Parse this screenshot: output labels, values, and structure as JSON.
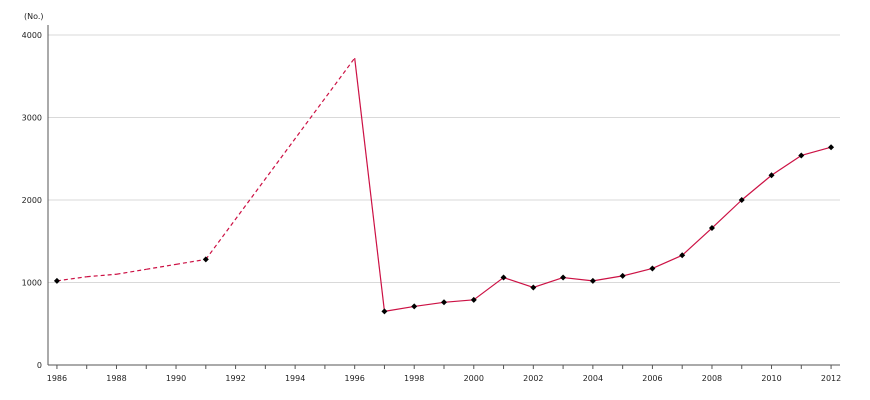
{
  "chart_data": {
    "type": "line",
    "unit_label": "(No.)",
    "title": "",
    "xlabel": "",
    "ylabel": "",
    "xlim": [
      1986,
      2012
    ],
    "ylim": [
      0,
      4000
    ],
    "x_ticks": [
      1986,
      1988,
      1990,
      1992,
      1994,
      1996,
      1998,
      2000,
      2002,
      2004,
      2006,
      2008,
      2010,
      2012
    ],
    "y_ticks": [
      0,
      1000,
      2000,
      3000,
      4000
    ],
    "grid": "horizontal",
    "legend": "none",
    "series": [
      {
        "color": "#cc1144",
        "points": [
          {
            "x": 1986,
            "y": 1020,
            "marker": true,
            "dashed_from_prev": false
          },
          {
            "x": 1987,
            "y": 1070,
            "marker": false,
            "dashed_from_prev": true
          },
          {
            "x": 1988,
            "y": 1100,
            "marker": false,
            "dashed_from_prev": true
          },
          {
            "x": 1989,
            "y": 1160,
            "marker": false,
            "dashed_from_prev": true
          },
          {
            "x": 1990,
            "y": 1220,
            "marker": false,
            "dashed_from_prev": true
          },
          {
            "x": 1991,
            "y": 1280,
            "marker": true,
            "dashed_from_prev": true
          },
          {
            "x": 1996,
            "y": 3720,
            "marker": false,
            "dashed_from_prev": true
          },
          {
            "x": 1997,
            "y": 650,
            "marker": true,
            "dashed_from_prev": false
          },
          {
            "x": 1998,
            "y": 710,
            "marker": true,
            "dashed_from_prev": false
          },
          {
            "x": 1999,
            "y": 760,
            "marker": true,
            "dashed_from_prev": false
          },
          {
            "x": 2000,
            "y": 790,
            "marker": true,
            "dashed_from_prev": false
          },
          {
            "x": 2001,
            "y": 1060,
            "marker": true,
            "dashed_from_prev": false
          },
          {
            "x": 2002,
            "y": 940,
            "marker": true,
            "dashed_from_prev": false
          },
          {
            "x": 2003,
            "y": 1060,
            "marker": true,
            "dashed_from_prev": false
          },
          {
            "x": 2004,
            "y": 1020,
            "marker": true,
            "dashed_from_prev": false
          },
          {
            "x": 2005,
            "y": 1080,
            "marker": true,
            "dashed_from_prev": false
          },
          {
            "x": 2006,
            "y": 1170,
            "marker": true,
            "dashed_from_prev": false
          },
          {
            "x": 2007,
            "y": 1330,
            "marker": true,
            "dashed_from_prev": false
          },
          {
            "x": 2008,
            "y": 1660,
            "marker": true,
            "dashed_from_prev": false
          },
          {
            "x": 2009,
            "y": 2000,
            "marker": true,
            "dashed_from_prev": false
          },
          {
            "x": 2010,
            "y": 2300,
            "marker": true,
            "dashed_from_prev": false
          },
          {
            "x": 2011,
            "y": 2540,
            "marker": true,
            "dashed_from_prev": false
          },
          {
            "x": 2012,
            "y": 2640,
            "marker": true,
            "dashed_from_prev": false
          }
        ]
      }
    ]
  }
}
